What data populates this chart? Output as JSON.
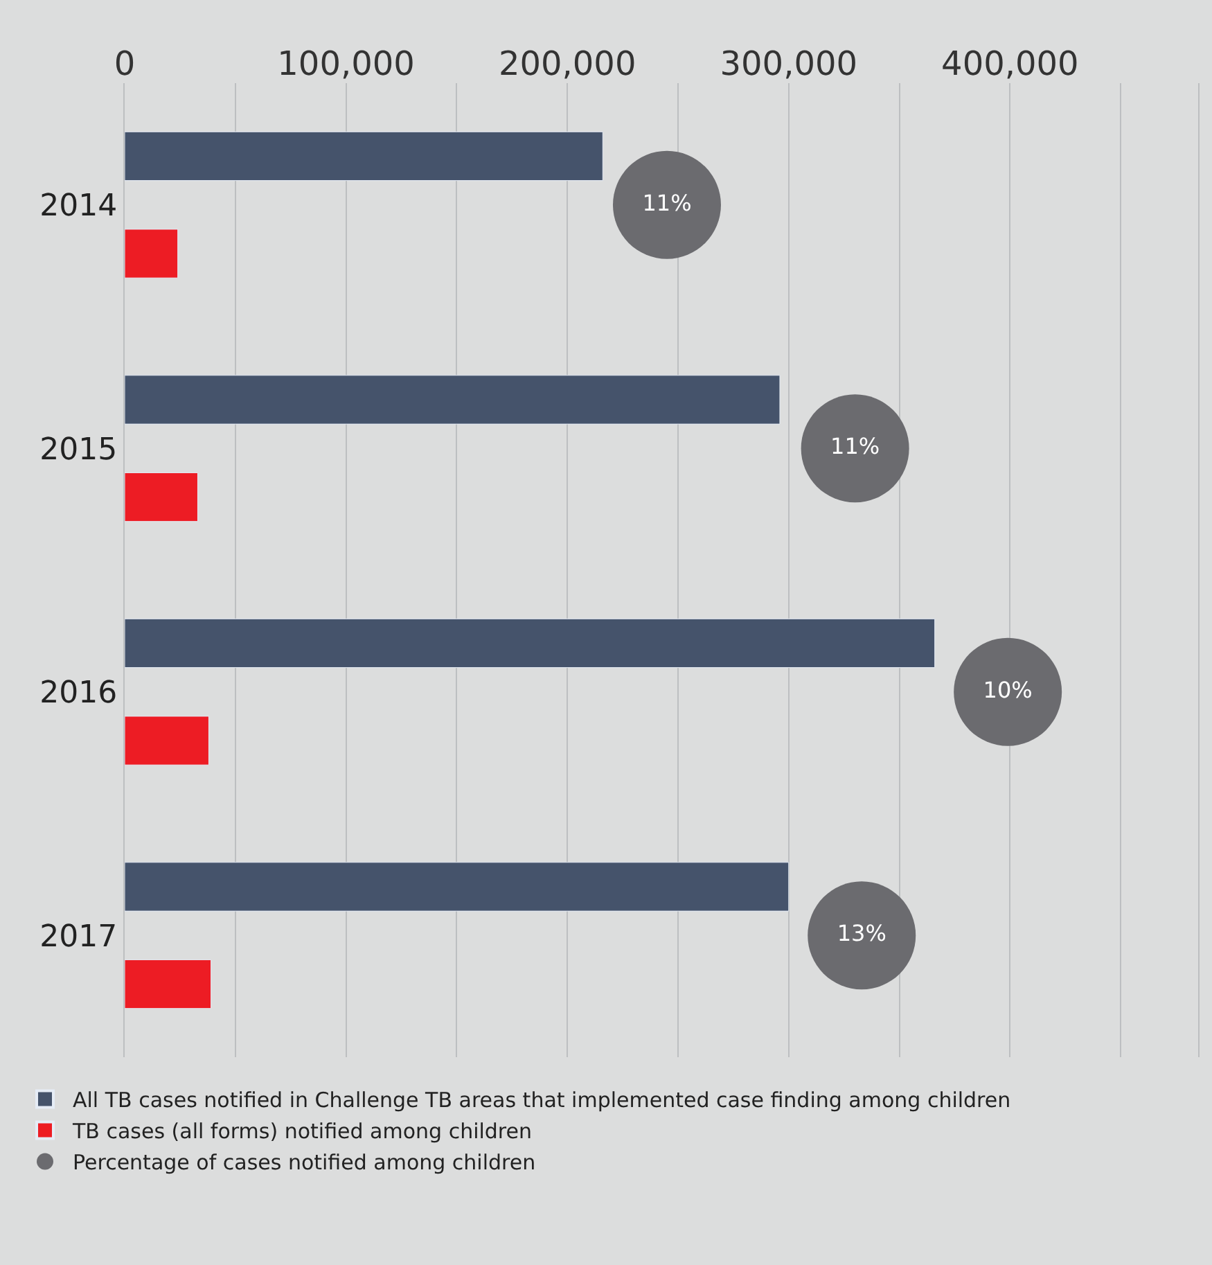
{
  "chart_data": {
    "type": "bar",
    "orientation": "horizontal",
    "categories": [
      "2014",
      "2015",
      "2016",
      "2017"
    ],
    "series": [
      {
        "name": "All TB cases notified in Challenge TB areas that implemented case finding among children",
        "color": "#45536b",
        "values": [
          216000,
          296000,
          366000,
          300000
        ]
      },
      {
        "name": "TB cases (all forms) notified among children",
        "color": "#ed1c24",
        "values": [
          24000,
          33000,
          38000,
          39000
        ]
      },
      {
        "name": "Percentage of cases notified among children",
        "type": "scatter",
        "marker": "circle",
        "color": "#6b6b6f",
        "values": [
          245000,
          330000,
          399000,
          333000
        ]
      }
    ],
    "annotations": [
      "11%",
      "11%",
      "10%",
      "13%"
    ],
    "xlim": [
      0,
      485000
    ],
    "xticks": [
      0,
      {
        "value": 50000,
        "label": null
      },
      {
        "value": 100000,
        "label": "100,000"
      },
      {
        "value": 150000,
        "label": null
      },
      {
        "value": 200000,
        "label": "200,000"
      },
      {
        "value": 250000,
        "label": null
      },
      {
        "value": 300000,
        "label": "300,000"
      },
      {
        "value": 350000,
        "label": null
      },
      {
        "value": 400000,
        "label": "400,000"
      },
      {
        "value": 450000,
        "label": null
      }
    ],
    "grid": "x",
    "legend": "bottom"
  }
}
